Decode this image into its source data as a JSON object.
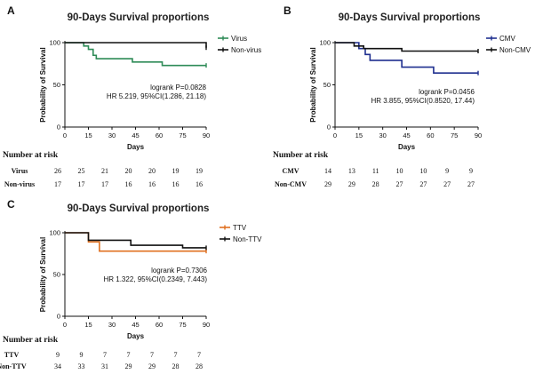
{
  "chart_data": [
    {
      "panel": "A",
      "type": "line",
      "title": "90-Days Survival proportions",
      "xlabel": "Days",
      "ylabel": "Probability of Survival",
      "xlim": [
        0,
        90
      ],
      "ylim": [
        0,
        100
      ],
      "xticks": [
        0,
        15,
        30,
        45,
        60,
        75,
        90
      ],
      "yticks": [
        0,
        50,
        100
      ],
      "legend_position": "top-right",
      "series": [
        {
          "name": "Virus",
          "color": "#2e8b57",
          "x": [
            0,
            10,
            12,
            15,
            18,
            20,
            43,
            62,
            90
          ],
          "y": [
            100,
            100,
            96,
            92,
            85,
            81,
            77,
            73,
            73
          ]
        },
        {
          "name": "Non-virus",
          "color": "#111111",
          "x": [
            0,
            43,
            90
          ],
          "y": [
            100,
            100,
            94
          ]
        }
      ],
      "annotation": [
        "logrank P=0.0828",
        "HR 5.219, 95%CI(1.286, 21.18)"
      ],
      "risk_table": {
        "header": "Number at risk",
        "rows": [
          {
            "label": "Virus",
            "values": [
              "26",
              "25",
              "21",
              "20",
              "20",
              "19",
              "19"
            ]
          },
          {
            "label": "Non-virus",
            "values": [
              "17",
              "17",
              "17",
              "16",
              "16",
              "16",
              "16"
            ]
          }
        ]
      }
    },
    {
      "panel": "B",
      "type": "line",
      "title": "90-Days Survival proportions",
      "xlabel": "Days",
      "ylabel": "Probability of Survival",
      "xlim": [
        0,
        90
      ],
      "ylim": [
        0,
        100
      ],
      "xticks": [
        0,
        15,
        30,
        45,
        60,
        75,
        90
      ],
      "yticks": [
        0,
        50,
        100
      ],
      "legend_position": "top-right",
      "series": [
        {
          "name": "CMV",
          "color": "#1f2f8f",
          "x": [
            0,
            12,
            15,
            19,
            22,
            42,
            62,
            90
          ],
          "y": [
            100,
            100,
            93,
            86,
            79,
            71,
            64,
            64
          ]
        },
        {
          "name": "Non-CMV",
          "color": "#111111",
          "x": [
            0,
            12,
            18,
            42,
            90
          ],
          "y": [
            100,
            96,
            93,
            90,
            90
          ]
        }
      ],
      "annotation": [
        "logrank P=0.0456",
        "HR 3.855, 95%CI(0.8520, 17.44)"
      ],
      "risk_table": {
        "header": "Number at risk",
        "rows": [
          {
            "label": "CMV",
            "values": [
              "14",
              "13",
              "11",
              "10",
              "10",
              "9",
              "9"
            ]
          },
          {
            "label": "Non-CMV",
            "values": [
              "29",
              "29",
              "28",
              "27",
              "27",
              "27",
              "27"
            ]
          }
        ]
      }
    },
    {
      "panel": "C",
      "type": "line",
      "title": "90-Days Survival proportions",
      "xlabel": "Days",
      "ylabel": "Probability of Survival",
      "xlim": [
        0,
        90
      ],
      "ylim": [
        0,
        100
      ],
      "xticks": [
        0,
        15,
        30,
        45,
        60,
        75,
        90
      ],
      "yticks": [
        0,
        50,
        100
      ],
      "legend_position": "top-right",
      "series": [
        {
          "name": "TTV",
          "color": "#e07020",
          "x": [
            0,
            15,
            18,
            22,
            90
          ],
          "y": [
            100,
            89,
            89,
            78,
            78
          ]
        },
        {
          "name": "Non-TTV",
          "color": "#111111",
          "x": [
            0,
            15,
            42,
            75,
            90
          ],
          "y": [
            100,
            91,
            85,
            82,
            82
          ]
        }
      ],
      "annotation": [
        "logrank P=0.7306",
        "HR 1.322, 95%CI(0.2349, 7.443)"
      ],
      "risk_table": {
        "header": "Number at risk",
        "rows": [
          {
            "label": "TTV",
            "values": [
              "9",
              "9",
              "7",
              "7",
              "7",
              "7",
              "7"
            ]
          },
          {
            "label": "Non-TTV",
            "values": [
              "34",
              "33",
              "31",
              "29",
              "29",
              "28",
              "28"
            ]
          }
        ]
      }
    }
  ]
}
